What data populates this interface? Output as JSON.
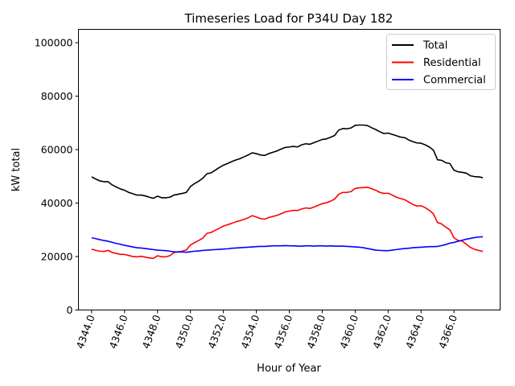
{
  "chart_data": {
    "type": "line",
    "title": "Timeseries Load for P34U   Day 182",
    "xlabel": "Hour of Year",
    "ylabel": "kW total",
    "xlim": [
      4343.2,
      4368.8
    ],
    "ylim": [
      0,
      105000
    ],
    "yticks": [
      0,
      20000,
      40000,
      60000,
      80000,
      100000
    ],
    "xticks": [
      4344,
      4346,
      4348,
      4350,
      4352,
      4354,
      4356,
      4358,
      4360,
      4362,
      4364,
      4366
    ],
    "xtick_labels": [
      "4344.0",
      "4346.0",
      "4348.0",
      "4350.0",
      "4352.0",
      "4354.0",
      "4356.0",
      "4358.0",
      "4360.0",
      "4362.0",
      "4364.0",
      "4366.0"
    ],
    "ytick_labels": [
      "0",
      "20000",
      "40000",
      "60000",
      "80000",
      "100000"
    ],
    "legend_position": "top-right",
    "x": [
      4344.0,
      4344.25,
      4344.5,
      4344.75,
      4345.0,
      4345.25,
      4345.5,
      4345.75,
      4346.0,
      4346.25,
      4346.5,
      4346.75,
      4347.0,
      4347.25,
      4347.5,
      4347.75,
      4348.0,
      4348.25,
      4348.5,
      4348.75,
      4349.0,
      4349.25,
      4349.5,
      4349.75,
      4350.0,
      4350.25,
      4350.5,
      4350.75,
      4351.0,
      4351.25,
      4351.5,
      4351.75,
      4352.0,
      4352.25,
      4352.5,
      4352.75,
      4353.0,
      4353.25,
      4353.5,
      4353.75,
      4354.0,
      4354.25,
      4354.5,
      4354.75,
      4355.0,
      4355.25,
      4355.5,
      4355.75,
      4356.0,
      4356.25,
      4356.5,
      4356.75,
      4357.0,
      4357.25,
      4357.5,
      4357.75,
      4358.0,
      4358.25,
      4358.5,
      4358.75,
      4359.0,
      4359.25,
      4359.5,
      4359.75,
      4360.0,
      4360.25,
      4360.5,
      4360.75,
      4361.0,
      4361.25,
      4361.5,
      4361.75,
      4362.0,
      4362.25,
      4362.5,
      4362.75,
      4363.0,
      4363.25,
      4363.5,
      4363.75,
      4364.0,
      4364.25,
      4364.5,
      4364.75,
      4365.0,
      4365.25,
      4365.5,
      4365.75,
      4366.0,
      4366.25,
      4366.5,
      4366.75,
      4367.0,
      4367.25,
      4367.5,
      4367.75
    ],
    "series": [
      {
        "name": "Total",
        "color": "#000000",
        "values": [
          49800,
          49000,
          48300,
          48000,
          48000,
          46800,
          46000,
          45300,
          44800,
          44000,
          43500,
          43000,
          43000,
          42700,
          42200,
          41800,
          42600,
          42000,
          42000,
          42200,
          43000,
          43300,
          43600,
          44000,
          46200,
          47300,
          48200,
          49300,
          51000,
          51300,
          52300,
          53300,
          54200,
          54800,
          55500,
          56100,
          56600,
          57300,
          58000,
          58800,
          58500,
          58000,
          57800,
          58500,
          59000,
          59500,
          60200,
          60800,
          61000,
          61200,
          61000,
          61800,
          62200,
          62000,
          62600,
          63200,
          63800,
          64000,
          64600,
          65300,
          67300,
          67900,
          67800,
          68100,
          69100,
          69200,
          69200,
          69000,
          68200,
          67500,
          66700,
          66000,
          66200,
          65700,
          65200,
          64700,
          64500,
          63600,
          63000,
          62500,
          62400,
          61800,
          61000,
          59800,
          56200,
          56000,
          55100,
          54800,
          52300,
          51700,
          51500,
          51200,
          50200,
          49900,
          49800,
          49500
        ]
      },
      {
        "name": "Residential",
        "color": "#ff0000",
        "values": [
          22800,
          22300,
          22000,
          21900,
          22300,
          21500,
          21200,
          20800,
          20800,
          20400,
          20000,
          19900,
          20100,
          19800,
          19500,
          19300,
          20300,
          19900,
          19900,
          20300,
          21500,
          21800,
          22000,
          22500,
          24300,
          25200,
          26000,
          26900,
          28700,
          29000,
          29800,
          30600,
          31400,
          31900,
          32400,
          33000,
          33400,
          33900,
          34500,
          35300,
          34800,
          34200,
          34000,
          34600,
          35000,
          35400,
          36000,
          36700,
          37000,
          37300,
          37200,
          37800,
          38200,
          38000,
          38500,
          39200,
          39800,
          40100,
          40700,
          41500,
          43300,
          44000,
          44000,
          44300,
          45500,
          45700,
          45800,
          45900,
          45400,
          44800,
          44000,
          43600,
          43700,
          43000,
          42200,
          41700,
          41300,
          40400,
          39500,
          38900,
          39000,
          38300,
          37300,
          36000,
          32700,
          32200,
          31000,
          30000,
          27000,
          26000,
          25800,
          24600,
          23400,
          22700,
          22300,
          21900
        ]
      },
      {
        "name": "Commercial",
        "color": "#0000ff",
        "values": [
          27000,
          26700,
          26300,
          26000,
          25700,
          25300,
          24900,
          24600,
          24200,
          23900,
          23600,
          23300,
          23200,
          23000,
          22800,
          22600,
          22400,
          22300,
          22200,
          22000,
          21800,
          21700,
          21700,
          21600,
          21800,
          22000,
          22100,
          22300,
          22400,
          22500,
          22600,
          22700,
          22800,
          22900,
          23100,
          23200,
          23300,
          23400,
          23500,
          23600,
          23700,
          23800,
          23800,
          23900,
          24000,
          24000,
          24000,
          24100,
          24000,
          24000,
          23900,
          23900,
          24000,
          24000,
          23900,
          24000,
          24000,
          23900,
          24000,
          23900,
          23900,
          23900,
          23800,
          23700,
          23600,
          23500,
          23300,
          23000,
          22700,
          22400,
          22300,
          22200,
          22200,
          22400,
          22600,
          22800,
          23000,
          23100,
          23300,
          23400,
          23500,
          23600,
          23700,
          23700,
          23800,
          24100,
          24500,
          25000,
          25300,
          25700,
          26100,
          26500,
          26800,
          27100,
          27300,
          27400
        ]
      }
    ]
  }
}
